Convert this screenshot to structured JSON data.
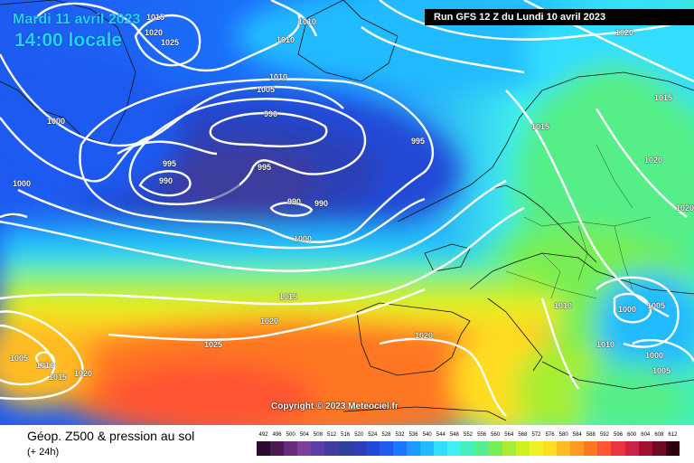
{
  "header": {
    "date_label": "Mardi 11 avril 2023",
    "time_label": "14:00 locale",
    "run_info": "Run GFS 12 Z du Lundi 10 avril 2023"
  },
  "copyright": "Copyright © 2023 Meteociel.fr",
  "footer": {
    "title": "Géop. Z500 & pression au sol",
    "subtitle": "(+ 24h)"
  },
  "isobar_labels": [
    "1015",
    "1020",
    "1025",
    "1010",
    "1010",
    "1010",
    "1005",
    "990",
    "995",
    "995",
    "990",
    "995",
    "990",
    "990",
    "1000",
    "1000",
    "1000",
    "1015",
    "1020",
    "1025",
    "1020",
    "1005",
    "1010",
    "1015",
    "1020",
    "1020",
    "1015",
    "1020",
    "1015",
    "1000",
    "1005",
    "1010",
    "1000",
    "1005",
    "1020",
    "1010"
  ],
  "scale": {
    "labels": [
      "492",
      "496",
      "500",
      "504",
      "508",
      "512",
      "516",
      "520",
      "524",
      "528",
      "532",
      "536",
      "540",
      "544",
      "548",
      "552",
      "556",
      "560",
      "564",
      "568",
      "572",
      "576",
      "580",
      "584",
      "588",
      "592",
      "596",
      "600",
      "604",
      "608",
      "612"
    ],
    "colors": [
      "#2a0a2e",
      "#4b1a55",
      "#6a2b7a",
      "#7a3f99",
      "#5a3fa6",
      "#3d3d9e",
      "#2e3e99",
      "#2a3fb5",
      "#2448d6",
      "#1f5af0",
      "#1a78ff",
      "#1a99ff",
      "#22bbff",
      "#33ddff",
      "#40f0ee",
      "#44f0bb",
      "#55ee88",
      "#77ee55",
      "#a6ee33",
      "#cff022",
      "#f0f022",
      "#ffdd22",
      "#ffbb22",
      "#ff9922",
      "#ff7722",
      "#ff5533",
      "#ee3344",
      "#cc2244",
      "#a01133",
      "#700a22",
      "#300010"
    ]
  }
}
